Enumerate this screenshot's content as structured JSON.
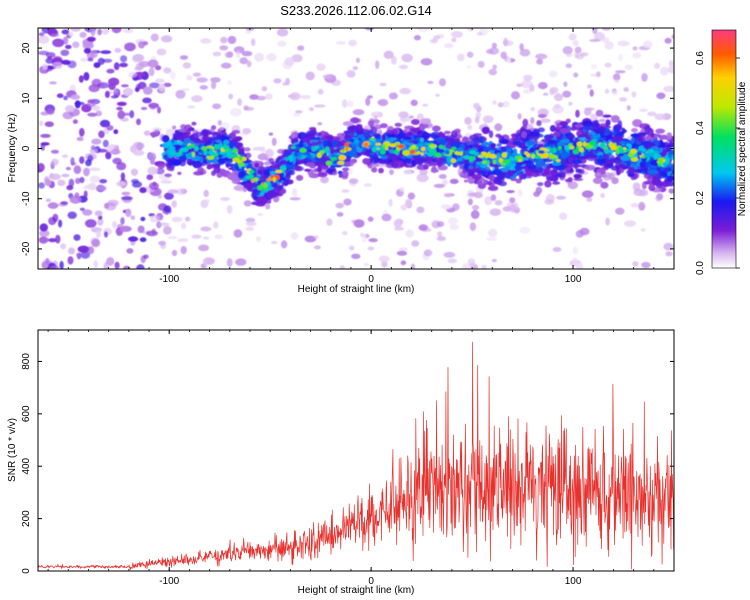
{
  "figure": {
    "title": "S233.2026.112.06.02.G14"
  },
  "chart_data": [
    {
      "type": "heatmap",
      "xlabel": "Height of straight line (km)",
      "ylabel": "Frequency (Hz)",
      "xlim": [
        -165,
        150
      ],
      "ylim": [
        -24,
        24
      ],
      "x_ticks": [
        -100,
        0,
        100
      ],
      "y_ticks": [
        -20,
        -10,
        0,
        10,
        20
      ],
      "colorbar": {
        "label": "Normalized spectral amplitude",
        "range": [
          0.0,
          0.68
        ],
        "ticks": [
          0.0,
          0.2,
          0.4,
          0.6
        ],
        "tick_labels": [
          "0.0",
          "0.2",
          "0.4",
          "0.6"
        ]
      },
      "ridge": {
        "x": [
          -100,
          -90,
          -80,
          -70,
          -62,
          -55,
          -45,
          -38,
          -30,
          -22,
          -15,
          -8,
          0,
          10,
          20,
          30,
          40,
          50,
          60,
          70,
          80,
          90,
          100,
          110,
          120,
          130,
          140,
          145
        ],
        "y": [
          0,
          0,
          -1,
          0,
          -4,
          -8,
          -5,
          -1,
          0,
          -1,
          -2,
          2,
          1,
          0,
          0,
          0,
          -1,
          -2,
          -2,
          -3,
          -1,
          -1,
          0,
          1,
          0,
          -1,
          -2,
          -3
        ]
      }
    },
    {
      "type": "line",
      "xlabel": "Height of straight line (km)",
      "ylabel": "SNR (10 * v/v)",
      "xlim": [
        -165,
        150
      ],
      "ylim": [
        0,
        920
      ],
      "x_ticks": [
        -100,
        0,
        100
      ],
      "y_ticks": [
        0,
        200,
        400,
        600,
        800
      ],
      "grid": false,
      "color": "#e8302c",
      "envelope": {
        "x": [
          -165,
          -120,
          -100,
          -80,
          -60,
          -40,
          -20,
          -10,
          0,
          10,
          20,
          30,
          35,
          40,
          50,
          60,
          80,
          100,
          120,
          140,
          150
        ],
        "y": [
          15,
          18,
          35,
          55,
          75,
          90,
          135,
          170,
          210,
          240,
          275,
          320,
          330,
          300,
          300,
          305,
          315,
          310,
          300,
          290,
          280
        ]
      }
    }
  ]
}
